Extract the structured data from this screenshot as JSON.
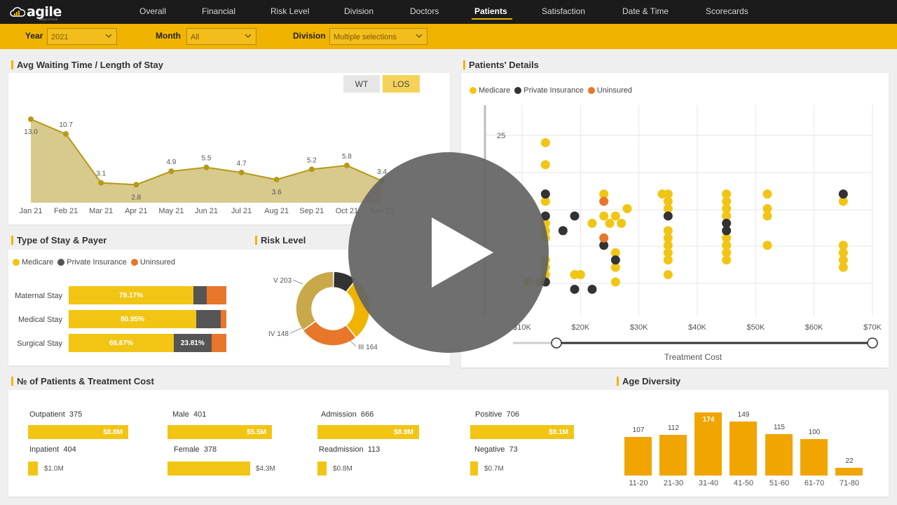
{
  "app": {
    "logo_text": "agile",
    "logo_sub": "ANALYTICS"
  },
  "nav": {
    "items": [
      "Overall",
      "Financial",
      "Risk Level",
      "Division",
      "Doctors",
      "Patients",
      "Satisfaction",
      "Date & Time",
      "Scorecards"
    ],
    "active": "Patients"
  },
  "filters": {
    "year_label": "Year",
    "year_value": "2021",
    "month_label": "Month",
    "month_value": "All",
    "division_label": "Division",
    "division_value": "Multiple selections"
  },
  "colors": {
    "accent": "#f0b400",
    "medicare": "#f2c515",
    "private": "#555555",
    "uninsured": "#e8762b",
    "dark_dot": "#333333",
    "orange_bar": "#f0a500"
  },
  "awt": {
    "title": "Avg Waiting Time / Length of Stay",
    "btn_wt": "WT",
    "btn_los": "LOS",
    "months": [
      "Jan 21",
      "Feb 21",
      "Mar 21",
      "Apr 21",
      "May 21",
      "Jun 21",
      "Jul 21",
      "Aug 21",
      "Sep 21",
      "Oct 21",
      "Nov 21"
    ],
    "values": [
      13.0,
      10.7,
      3.1,
      2.8,
      4.9,
      5.5,
      4.7,
      3.6,
      5.2,
      5.8,
      3.4
    ],
    "value_labels": [
      "13.0",
      "10.7",
      "3.1",
      "2.8",
      "4.9",
      "5.5",
      "4.7",
      "3.6",
      "5.2",
      "5.8",
      "3.4"
    ]
  },
  "stay": {
    "title": "Type of Stay & Payer",
    "legend": [
      "Medicare",
      "Private Insurance",
      "Uninsured"
    ],
    "rows": [
      {
        "label": "Maternal Stay",
        "medicare": 79.17,
        "private": 8.33,
        "uninsured": 12.5,
        "medicare_label": "79.17%",
        "private_label": ""
      },
      {
        "label": "Medical Stay",
        "medicare": 80.95,
        "private": 15.48,
        "uninsured": 3.57,
        "medicare_label": "80.95%",
        "private_label": ""
      },
      {
        "label": "Surgical Stay",
        "medicare": 66.67,
        "private": 23.81,
        "uninsured": 9.52,
        "medicare_label": "66.67%",
        "private_label": "23.81%"
      }
    ]
  },
  "risk": {
    "title": "Risk Level",
    "slices": [
      {
        "label": "I",
        "value": 0,
        "display": ""
      },
      {
        "label": "II",
        "value": 60,
        "display": ""
      },
      {
        "label": "III 164",
        "value": 164,
        "display": "III 164"
      },
      {
        "label": "IV 148",
        "value": 148,
        "display": "IV 148"
      },
      {
        "label": "V 203",
        "value": 203,
        "display": "V 203"
      }
    ]
  },
  "patients": {
    "title": "Patients' Details",
    "legend": [
      "Medicare",
      "Private Insurance",
      "Uninsured"
    ],
    "y_tick": "25",
    "x_ticks": [
      "$10K",
      "$20K",
      "$30K",
      "$40K",
      "$50K",
      "$60K",
      "$70K"
    ],
    "x_title": "Treatment Cost"
  },
  "kpi": {
    "title": "№ of Patients & Treatment Cost",
    "groups": [
      {
        "label1": "Outpatient",
        "count1": "375",
        "val1": "$8.8M",
        "label2": "Inpatient",
        "count2": "404",
        "val2": "$1.0M"
      },
      {
        "label1": "Male",
        "count1": "401",
        "val1": "$5.5M",
        "label2": "Female",
        "count2": "378",
        "val2": "$4.3M"
      },
      {
        "label1": "Admission",
        "count1": "666",
        "val1": "$8.9M",
        "label2": "Readmission",
        "count2": "113",
        "val2": "$0.8M"
      },
      {
        "label1": "Positive",
        "count1": "706",
        "val1": "$9.1M",
        "label2": "Negative",
        "count2": "73",
        "val2": "$0.7M"
      }
    ]
  },
  "age": {
    "title": "Age Diversity",
    "categories": [
      "11-20",
      "21-30",
      "31-40",
      "41-50",
      "51-60",
      "61-70",
      "71-80"
    ],
    "values": [
      107,
      112,
      174,
      149,
      115,
      100,
      22
    ],
    "value_labels": [
      "107",
      "112",
      "174",
      "149",
      "115",
      "100",
      "22"
    ]
  },
  "chart_data": [
    {
      "type": "area",
      "title": "Avg Waiting Time / Length of Stay",
      "categories": [
        "Jan 21",
        "Feb 21",
        "Mar 21",
        "Apr 21",
        "May 21",
        "Jun 21",
        "Jul 21",
        "Aug 21",
        "Sep 21",
        "Oct 21",
        "Nov 21"
      ],
      "values": [
        13.0,
        10.7,
        3.1,
        2.8,
        4.9,
        5.5,
        4.7,
        3.6,
        5.2,
        5.8,
        3.4
      ]
    },
    {
      "type": "bar",
      "title": "Type of Stay & Payer",
      "categories": [
        "Maternal Stay",
        "Medical Stay",
        "Surgical Stay"
      ],
      "series": [
        {
          "name": "Medicare",
          "values": [
            79.17,
            80.95,
            66.67
          ]
        },
        {
          "name": "Private Insurance",
          "values": [
            8.33,
            15.48,
            23.81
          ]
        },
        {
          "name": "Uninsured",
          "values": [
            12.5,
            3.57,
            9.52
          ]
        }
      ]
    },
    {
      "type": "pie",
      "title": "Risk Level",
      "categories": [
        "II",
        "III",
        "IV",
        "V"
      ],
      "values": [
        60,
        164,
        148,
        203
      ]
    },
    {
      "type": "scatter",
      "title": "Patients' Details",
      "xlabel": "Treatment Cost",
      "series": [
        {
          "name": "Medicare",
          "points": [
            [
              14000,
              24
            ],
            [
              14000,
              21
            ],
            [
              14000,
              16
            ],
            [
              14000,
              14
            ],
            [
              14000,
              13
            ],
            [
              14000,
              12
            ],
            [
              14000,
              11
            ],
            [
              14000,
              8
            ],
            [
              14000,
              7
            ],
            [
              14000,
              6
            ],
            [
              13000,
              5
            ],
            [
              11000,
              5
            ],
            [
              19000,
              6
            ],
            [
              20000,
              6
            ],
            [
              22000,
              13
            ],
            [
              24000,
              17
            ],
            [
              24000,
              14
            ],
            [
              25000,
              13
            ],
            [
              26000,
              14
            ],
            [
              27000,
              13
            ],
            [
              28000,
              15
            ],
            [
              26000,
              9
            ],
            [
              26000,
              7
            ],
            [
              26000,
              5
            ],
            [
              34000,
              17
            ],
            [
              35000,
              17
            ],
            [
              35000,
              16
            ],
            [
              35000,
              15
            ],
            [
              35000,
              12
            ],
            [
              35000,
              11
            ],
            [
              35000,
              10
            ],
            [
              35000,
              9
            ],
            [
              35000,
              8
            ],
            [
              35000,
              6
            ],
            [
              45000,
              17
            ],
            [
              45000,
              16
            ],
            [
              45000,
              15
            ],
            [
              45000,
              14
            ],
            [
              45000,
              11
            ],
            [
              45000,
              10
            ],
            [
              45000,
              9
            ],
            [
              45000,
              8
            ],
            [
              52000,
              17
            ],
            [
              52000,
              15
            ],
            [
              52000,
              14
            ],
            [
              52000,
              10
            ],
            [
              65000,
              16
            ],
            [
              65000,
              10
            ],
            [
              65000,
              9
            ],
            [
              65000,
              8
            ],
            [
              65000,
              7
            ]
          ]
        },
        {
          "name": "Private Insurance",
          "points": [
            [
              14000,
              17
            ],
            [
              14000,
              14
            ],
            [
              17000,
              12
            ],
            [
              19000,
              14
            ],
            [
              24000,
              10
            ],
            [
              26000,
              8
            ],
            [
              14000,
              5
            ],
            [
              19000,
              4
            ],
            [
              22000,
              4
            ],
            [
              35000,
              14
            ],
            [
              45000,
              13
            ],
            [
              45000,
              12
            ],
            [
              65000,
              17
            ]
          ]
        },
        {
          "name": "Uninsured",
          "points": [
            [
              24000,
              16
            ],
            [
              24000,
              11
            ]
          ]
        }
      ]
    },
    {
      "type": "bar",
      "title": "Age Diversity",
      "categories": [
        "11-20",
        "21-30",
        "31-40",
        "41-50",
        "51-60",
        "61-70",
        "71-80"
      ],
      "values": [
        107,
        112,
        174,
        149,
        115,
        100,
        22
      ]
    }
  ]
}
